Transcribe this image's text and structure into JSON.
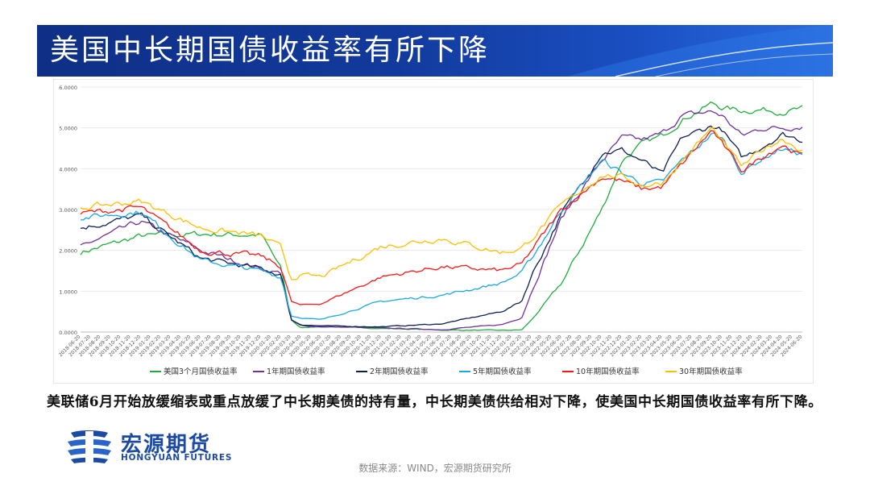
{
  "banner": {
    "title": "美国中长期国债收益率有所下降"
  },
  "chart_data": {
    "type": "line",
    "ylim": [
      0,
      6
    ],
    "y_ticks": [
      "0.0000",
      "1.0000",
      "2.0000",
      "3.0000",
      "4.0000",
      "5.0000",
      "6.0000"
    ],
    "x_labels": [
      "2018-06-20",
      "2018-07-20",
      "2018-08-20",
      "2018-09-20",
      "2018-10-20",
      "2018-11-20",
      "2018-12-20",
      "2019-01-20",
      "2019-02-20",
      "2019-03-20",
      "2019-04-20",
      "2019-05-20",
      "2019-06-20",
      "2019-07-20",
      "2019-08-20",
      "2019-09-20",
      "2019-10-20",
      "2019-11-20",
      "2019-12-20",
      "2020-01-20",
      "2020-02-20",
      "2020-03-20",
      "2020-04-20",
      "2020-05-20",
      "2020-06-20",
      "2020-07-20",
      "2020-08-20",
      "2020-09-20",
      "2020-10-20",
      "2020-11-20",
      "2020-12-20",
      "2021-01-20",
      "2021-02-20",
      "2021-03-20",
      "2021-04-20",
      "2021-05-20",
      "2021-06-20",
      "2021-07-20",
      "2021-08-20",
      "2021-09-20",
      "2021-10-20",
      "2021-11-20",
      "2021-12-20",
      "2022-01-20",
      "2022-02-20",
      "2022-03-20",
      "2022-04-20",
      "2022-05-20",
      "2022-06-20",
      "2022-07-20",
      "2022-08-20",
      "2022-09-20",
      "2022-10-20",
      "2022-11-20",
      "2022-12-20",
      "2023-01-20",
      "2023-02-20",
      "2023-03-20",
      "2023-04-20",
      "2023-05-20",
      "2023-06-20",
      "2023-07-20",
      "2023-08-20",
      "2023-09-20",
      "2023-10-20",
      "2023-11-20",
      "2023-12-20",
      "2024-01-20",
      "2024-02-20",
      "2024-03-20",
      "2024-04-20",
      "2024-05-20",
      "2024-06-20"
    ],
    "x_anchor_index": [
      0,
      6,
      12,
      18,
      20,
      21,
      22,
      24,
      30,
      36,
      42,
      44,
      45,
      48,
      52,
      54,
      56,
      58,
      60,
      63,
      64,
      66,
      68,
      70,
      72
    ],
    "series": [
      {
        "name": "美国3个月国债收益率",
        "color": "#1fae3c",
        "values": [
          1.95,
          2.35,
          2.4,
          2.38,
          1.55,
          0.3,
          0.1,
          0.14,
          0.09,
          0.05,
          0.04,
          0.05,
          0.3,
          1.2,
          3.0,
          4.2,
          4.6,
          4.8,
          5.2,
          5.6,
          5.5,
          5.42,
          5.45,
          5.4,
          5.46
        ]
      },
      {
        "name": "1年期国债收益率",
        "color": "#7030a0",
        "values": [
          2.1,
          2.7,
          2.0,
          1.55,
          1.45,
          0.3,
          0.15,
          0.13,
          0.1,
          0.06,
          0.18,
          0.35,
          1.0,
          2.8,
          4.2,
          4.75,
          4.7,
          4.85,
          5.3,
          5.4,
          5.3,
          4.8,
          5.0,
          5.0,
          5.05
        ]
      },
      {
        "name": "2年期国债收益率",
        "color": "#0d1f52",
        "values": [
          2.55,
          2.85,
          1.8,
          1.55,
          1.4,
          0.3,
          0.18,
          0.15,
          0.13,
          0.2,
          0.5,
          0.75,
          1.4,
          2.9,
          4.4,
          4.45,
          4.2,
          3.85,
          4.75,
          5.05,
          4.95,
          4.25,
          4.55,
          4.85,
          4.7
        ]
      },
      {
        "name": "5年期国债收益率",
        "color": "#19a9e3",
        "values": [
          2.8,
          2.95,
          1.75,
          1.5,
          1.35,
          0.4,
          0.35,
          0.3,
          0.75,
          0.9,
          1.2,
          1.45,
          1.8,
          3.0,
          4.2,
          3.9,
          3.65,
          3.65,
          4.2,
          4.85,
          4.75,
          3.9,
          4.25,
          4.5,
          4.35
        ]
      },
      {
        "name": "10年期国债收益率",
        "color": "#ff1616",
        "values": [
          2.9,
          3.05,
          2.0,
          1.85,
          1.6,
          0.75,
          0.65,
          0.7,
          1.35,
          1.6,
          1.5,
          1.65,
          2.0,
          3.0,
          3.8,
          3.7,
          3.5,
          3.55,
          4.1,
          4.95,
          4.6,
          3.95,
          4.3,
          4.6,
          4.3
        ]
      },
      {
        "name": "30年期国债收益率",
        "color": "#ffbe00",
        "values": [
          3.05,
          3.2,
          2.55,
          2.35,
          2.05,
          1.3,
          1.4,
          1.35,
          2.1,
          2.3,
          1.95,
          2.05,
          2.3,
          3.1,
          3.85,
          3.8,
          3.6,
          3.65,
          4.2,
          5.0,
          4.65,
          4.05,
          4.45,
          4.75,
          4.45
        ]
      }
    ]
  },
  "text": {
    "paragraph": "美联储6月开始放缓缩表或重点放缓了中长期美债的持有量，中长期美债供给相对下降，使美国中长期国债收益率有所下降。",
    "logo_cn": "宏源期货",
    "logo_en": "HONGYUAN FUTURES",
    "source": "数据来源：WIND，宏源期货研究所"
  },
  "colors": {
    "banner": "#123a9c",
    "logo": "#1c4aa3"
  },
  "icons": {
    "logo": "hongyuan-logo-icon"
  }
}
